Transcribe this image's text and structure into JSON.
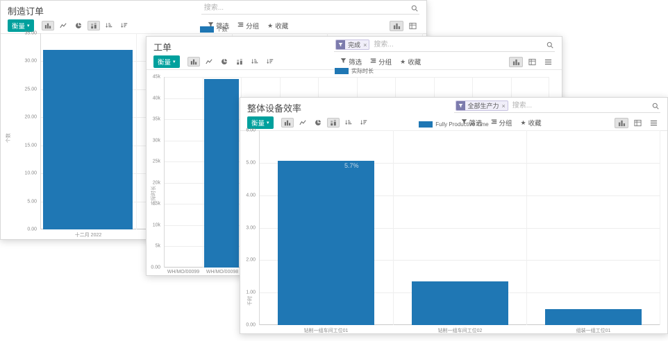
{
  "colors": {
    "bar": "#1f77b4",
    "accent_teal": "#00a09d",
    "facet_purple": "#7c7bad"
  },
  "icons": {
    "search": "magnifier",
    "measures_caret": "caret-down",
    "toolbar": [
      "bar-chart",
      "line-chart",
      "pie-chart",
      "stacked-bar",
      "sort-asc",
      "sort-desc"
    ],
    "search_panel": [
      "filter-funnel",
      "group-by",
      "favorite-star"
    ],
    "facet_icon": "filter-funnel",
    "view_switcher": [
      "graph",
      "pivot",
      "list"
    ]
  },
  "windows": [
    {
      "title": "制造订单",
      "search": {
        "placeholder": "搜索..."
      },
      "toolbar": {
        "measures_label": "衡量",
        "caret": "▾"
      },
      "filters": {
        "filter": "筛选",
        "group_by": "分组",
        "favorites": "收藏"
      },
      "chart_data": {
        "type": "bar",
        "legend": "个数",
        "categories": [
          "十二月 2022"
        ],
        "values": [
          32
        ],
        "ylabel": "个数",
        "ylim": [
          0,
          35
        ],
        "ytick_labels": [
          "35.00",
          "30.00",
          "25.00",
          "20.00",
          "15.00",
          "10.00",
          "5.00",
          "0.00"
        ],
        "slots": 4,
        "bar_fraction": 0.94,
        "grid": true,
        "legend_position": "top"
      }
    },
    {
      "title": "工单",
      "search": {
        "placeholder": "搜索...",
        "facet": {
          "label": "完成",
          "remove": "×"
        }
      },
      "toolbar": {
        "measures_label": "衡量",
        "caret": "▾"
      },
      "filters": {
        "filter": "筛选",
        "group_by": "分组",
        "favorites": "收藏"
      },
      "chart_data": {
        "type": "bar",
        "legend": "实际时长",
        "categories": [
          "WH/MO/00099",
          "WH/MO/00098",
          "WH/MO/00097"
        ],
        "values": [
          0,
          44500,
          0
        ],
        "ylabel": "实际时长",
        "ylim": [
          0,
          45000
        ],
        "ytick_labels": [
          "45k",
          "40k",
          "35k",
          "30k",
          "25k",
          "20k",
          "15k",
          "10k",
          "5k",
          "0.00"
        ],
        "slots": 10,
        "bar_fraction": 0.9,
        "grid": true,
        "legend_position": "top"
      }
    },
    {
      "title": "整体设备效率",
      "search": {
        "placeholder": "搜索...",
        "facet": {
          "label": "全部生产力",
          "remove": "×"
        }
      },
      "toolbar": {
        "measures_label": "衡量",
        "caret": "▾"
      },
      "filters": {
        "filter": "筛选",
        "group_by": "分组",
        "favorites": "收藏"
      },
      "chart_data": {
        "type": "bar",
        "legend": "Fully Productive Time",
        "categories": [
          "钻削一组车间工位01",
          "钻削一组车间工位02",
          "组装一组工位01"
        ],
        "values": [
          5.05,
          1.35,
          0.5
        ],
        "ylabel": "千时",
        "ylim": [
          0,
          6
        ],
        "ytick_labels": [
          "6.00",
          "5.00",
          "4.00",
          "3.00",
          "2.00",
          "1.00",
          "0.00"
        ],
        "slots": 3,
        "bar_fraction": 0.72,
        "annotation": {
          "text": "5.7%"
        },
        "grid": true,
        "legend_position": "top"
      }
    }
  ]
}
